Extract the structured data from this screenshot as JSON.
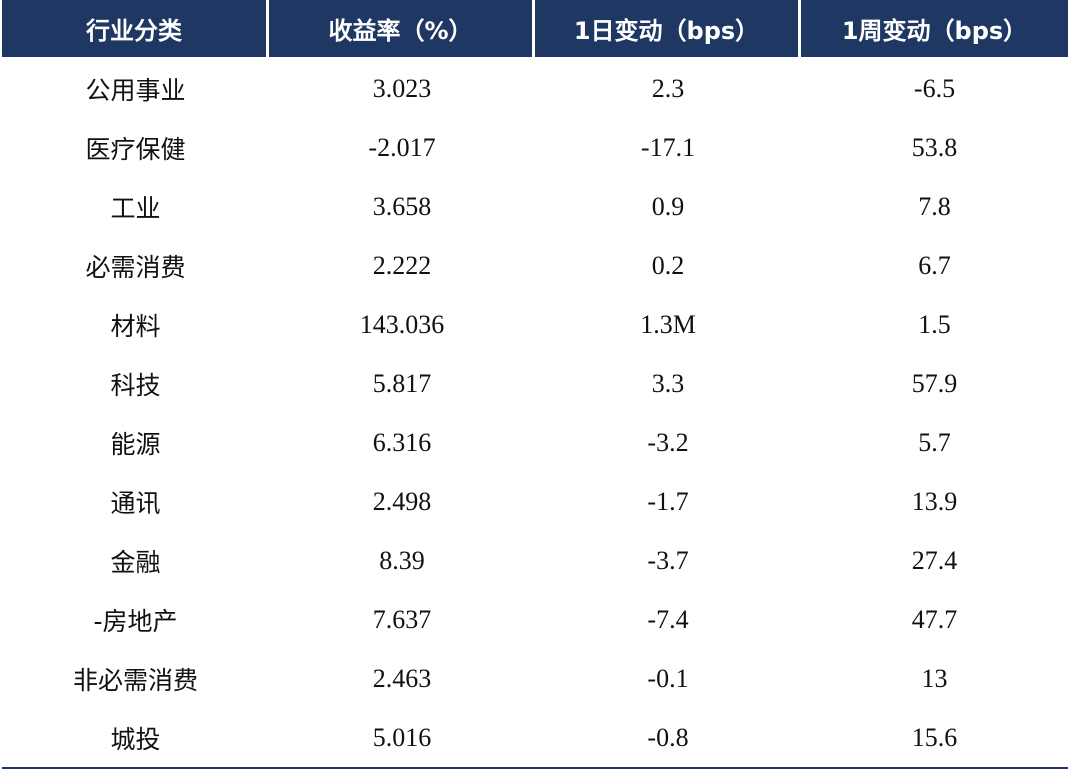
{
  "table": {
    "header_bg": "#1f3863",
    "columns": [
      "行业分类",
      "收益率（%）",
      "1日变动（bps）",
      "1周变动（bps）"
    ],
    "rows": [
      {
        "sector": "公用事业",
        "yield": "3.023",
        "d1": "2.3",
        "w1": "-6.5"
      },
      {
        "sector": "医疗保健",
        "yield": "-2.017",
        "d1": "-17.1",
        "w1": "53.8"
      },
      {
        "sector": "工业",
        "yield": "3.658",
        "d1": "0.9",
        "w1": "7.8"
      },
      {
        "sector": "必需消费",
        "yield": "2.222",
        "d1": "0.2",
        "w1": "6.7"
      },
      {
        "sector": "材料",
        "yield": "143.036",
        "d1": "1.3M",
        "w1": "1.5"
      },
      {
        "sector": "科技",
        "yield": "5.817",
        "d1": "3.3",
        "w1": "57.9"
      },
      {
        "sector": "能源",
        "yield": "6.316",
        "d1": "-3.2",
        "w1": "5.7"
      },
      {
        "sector": "通讯",
        "yield": "2.498",
        "d1": "-1.7",
        "w1": "13.9"
      },
      {
        "sector": "金融",
        "yield": "8.39",
        "d1": "-3.7",
        "w1": "27.4"
      },
      {
        "sector": "-房地产",
        "yield": "7.637",
        "d1": "-7.4",
        "w1": "47.7"
      },
      {
        "sector": "非必需消费",
        "yield": "2.463",
        "d1": "-0.1",
        "w1": "13"
      },
      {
        "sector": "城投",
        "yield": "5.016",
        "d1": "-0.8",
        "w1": "15.6"
      }
    ]
  }
}
